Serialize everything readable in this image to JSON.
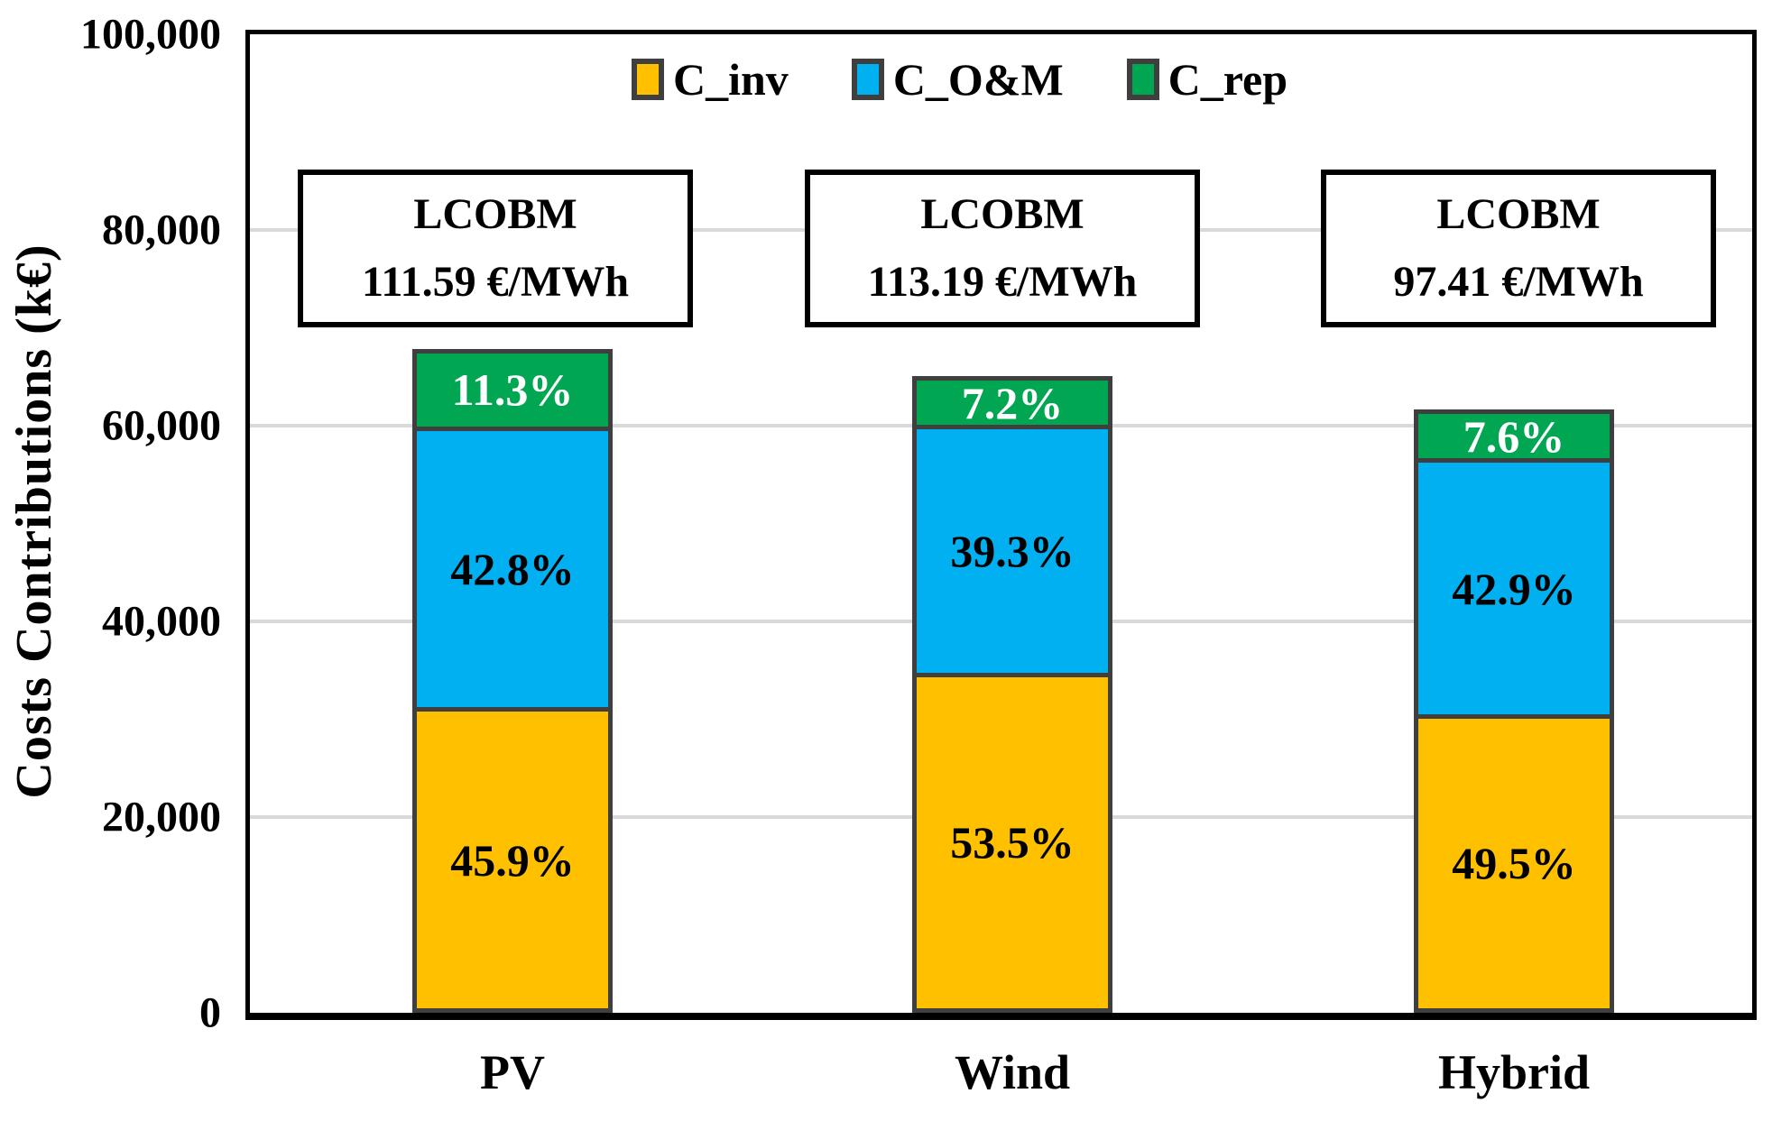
{
  "chart_data": {
    "type": "bar",
    "stacked": true,
    "title": "",
    "xlabel": "",
    "ylabel": "Costs Contributions (k€)",
    "ylim": [
      0,
      100000
    ],
    "ytick_interval": 20000,
    "yticks": [
      "100,000",
      "80,000",
      "60,000",
      "40,000",
      "20,000",
      "0"
    ],
    "grid": true,
    "legend_position": "top-center",
    "categories": [
      "PV",
      "Wind",
      "Hybrid"
    ],
    "series": [
      {
        "name": "C_inv",
        "color": "#FFC000",
        "label_color": "#000000",
        "values": [
          31120,
          34830,
          30540
        ],
        "pct_labels": [
          "45.9%",
          "53.5%",
          "49.5%"
        ]
      },
      {
        "name": "C_O&M",
        "color": "#00B0F0",
        "label_color": "#000000",
        "values": [
          29020,
          25580,
          26470
        ],
        "pct_labels": [
          "42.8%",
          "39.3%",
          "42.9%"
        ]
      },
      {
        "name": "C_rep",
        "color": "#00A651",
        "label_color": "#FFFFFF",
        "values": [
          7660,
          4690,
          4690
        ],
        "pct_labels": [
          "11.3%",
          "7.2%",
          "7.6%"
        ]
      }
    ],
    "bar_totals_k_euro": [
      67800,
      65100,
      61700
    ],
    "annotations": [
      {
        "title": "LCOBM",
        "value": "111.59 €/MWh"
      },
      {
        "title": "LCOBM",
        "value": "113.19 €/MWh"
      },
      {
        "title": "LCOBM",
        "value": "97.41 €/MWh"
      }
    ]
  },
  "colors": {
    "segment_border": "#3F3F3F",
    "gridline": "#D9D9D9",
    "axis": "#000000",
    "background": "#FFFFFF"
  }
}
